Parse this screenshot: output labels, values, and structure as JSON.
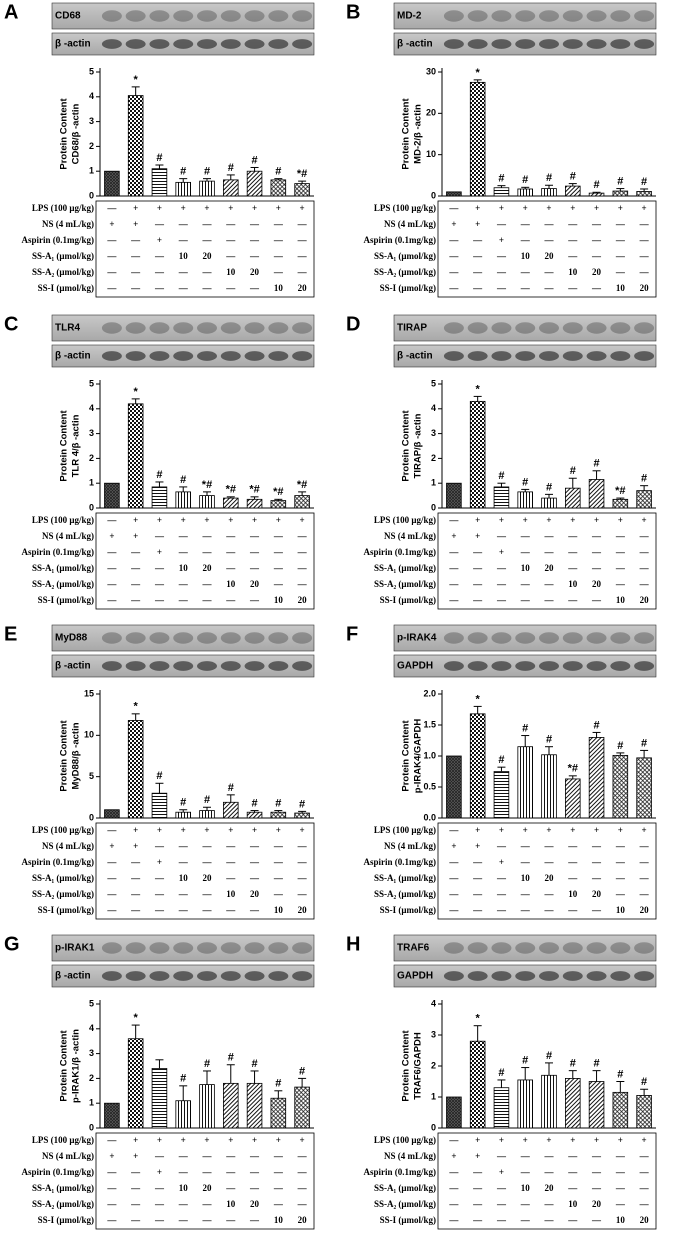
{
  "chart_data": [
    {
      "type": "bar",
      "panel": "A",
      "blots": [
        "CD68",
        "β -actin"
      ],
      "ylabel": [
        "Protein Content",
        "CD68/β -actin"
      ],
      "categories": [
        null,
        null,
        null,
        null,
        null,
        null,
        null,
        null,
        null
      ],
      "values": [
        1,
        4.05,
        1.1,
        0.55,
        0.6,
        0.65,
        1.0,
        0.65,
        0.5
      ],
      "errors": [
        0,
        0.35,
        0.15,
        0.15,
        0.1,
        0.2,
        0.15,
        0.05,
        0.1
      ],
      "annotations": [
        null,
        "*",
        "#",
        "#",
        "#",
        "#",
        "#",
        "#",
        "*#"
      ],
      "ylim": [
        0,
        5
      ],
      "yticks": [
        0,
        1,
        2,
        3,
        4,
        5
      ]
    },
    {
      "type": "bar",
      "panel": "B",
      "blots": [
        "MD-2",
        "β -actin"
      ],
      "ylabel": [
        "Protein Content",
        "MD-2/β -actin"
      ],
      "categories": [
        null,
        null,
        null,
        null,
        null,
        null,
        null,
        null,
        null
      ],
      "values": [
        1,
        27.5,
        2,
        1.7,
        1.8,
        2.4,
        0.7,
        1.2,
        1.1
      ],
      "errors": [
        0,
        0.6,
        0.5,
        0.4,
        0.8,
        0.6,
        0.2,
        0.6,
        0.6
      ],
      "annotations": [
        null,
        "*",
        "#",
        "#",
        "#",
        "#",
        "#",
        "#",
        "#"
      ],
      "ylim": [
        0,
        30
      ],
      "yticks": [
        0,
        10,
        20,
        30
      ]
    },
    {
      "type": "bar",
      "panel": "C",
      "blots": [
        "TLR4",
        "β -actin"
      ],
      "ylabel": [
        "Protein Content",
        "TLR 4/β -actin"
      ],
      "categories": [
        null,
        null,
        null,
        null,
        null,
        null,
        null,
        null,
        null
      ],
      "values": [
        1,
        4.2,
        0.85,
        0.65,
        0.5,
        0.4,
        0.35,
        0.3,
        0.5
      ],
      "errors": [
        0,
        0.2,
        0.2,
        0.2,
        0.15,
        0.05,
        0.1,
        0.05,
        0.15
      ],
      "annotations": [
        null,
        "*",
        "#",
        "#",
        "*#",
        "*#",
        "*#",
        "*#",
        "*#"
      ],
      "ylim": [
        0,
        5
      ],
      "yticks": [
        0,
        1,
        2,
        3,
        4,
        5
      ]
    },
    {
      "type": "bar",
      "panel": "D",
      "blots": [
        "TIRAP",
        "β -actin"
      ],
      "ylabel": [
        "Protein Content",
        "TIRAP/β -actin"
      ],
      "categories": [
        null,
        null,
        null,
        null,
        null,
        null,
        null,
        null,
        null
      ],
      "values": [
        1,
        4.3,
        0.85,
        0.65,
        0.4,
        0.8,
        1.15,
        0.35,
        0.7
      ],
      "errors": [
        0,
        0.2,
        0.15,
        0.1,
        0.15,
        0.4,
        0.35,
        0.05,
        0.2
      ],
      "annotations": [
        null,
        "*",
        "#",
        "#",
        "#",
        "#",
        "#",
        "*#",
        "#"
      ],
      "ylim": [
        0,
        5
      ],
      "yticks": [
        0,
        1,
        2,
        3,
        4,
        5
      ]
    },
    {
      "type": "bar",
      "panel": "E",
      "blots": [
        "MyD88",
        "β -actin"
      ],
      "ylabel": [
        "Protein Content",
        "MyD88/β -actin"
      ],
      "categories": [
        null,
        null,
        null,
        null,
        null,
        null,
        null,
        null,
        null
      ],
      "values": [
        1,
        11.8,
        3,
        0.7,
        0.9,
        1.9,
        0.7,
        0.7,
        0.6
      ],
      "errors": [
        0,
        0.8,
        1.2,
        0.3,
        0.4,
        0.9,
        0.2,
        0.2,
        0.2
      ],
      "annotations": [
        null,
        "*",
        "#",
        "#",
        "#",
        "#",
        "#",
        "#",
        "#"
      ],
      "ylim": [
        0,
        15
      ],
      "yticks": [
        0,
        5,
        10,
        15
      ]
    },
    {
      "type": "bar",
      "panel": "F",
      "blots": [
        "p-IRAK4",
        "GAPDH"
      ],
      "ylabel": [
        "Protein Content",
        "p-IRAK4/GAPDH"
      ],
      "categories": [
        null,
        null,
        null,
        null,
        null,
        null,
        null,
        null,
        null
      ],
      "values": [
        1,
        1.68,
        0.75,
        1.15,
        1.02,
        0.63,
        1.3,
        1.01,
        0.97
      ],
      "errors": [
        0,
        0.12,
        0.07,
        0.18,
        0.13,
        0.05,
        0.08,
        0.04,
        0.12
      ],
      "annotations": [
        null,
        "*",
        "#",
        "#",
        "#",
        "*#",
        "#",
        "#",
        "#"
      ],
      "ylim": [
        0,
        2
      ],
      "yticks": [
        {
          "value": 0,
          "label": "0.0"
        },
        {
          "value": 0.5,
          "label": "0.5"
        },
        {
          "value": 1,
          "label": "1.0"
        },
        {
          "value": 1.5,
          "label": "1.5"
        },
        {
          "value": 2,
          "label": "2.0"
        }
      ]
    },
    {
      "type": "bar",
      "panel": "G",
      "blots": [
        "p-IRAK1",
        "β -actin"
      ],
      "ylabel": [
        "Protein Content",
        "p-IRAK1/β -actin"
      ],
      "categories": [
        null,
        null,
        null,
        null,
        null,
        null,
        null,
        null,
        null
      ],
      "values": [
        1,
        3.6,
        2.4,
        1.1,
        1.75,
        1.8,
        1.8,
        1.2,
        1.65
      ],
      "errors": [
        0,
        0.55,
        0.35,
        0.6,
        0.55,
        0.75,
        0.5,
        0.3,
        0.35
      ],
      "annotations": [
        null,
        "*",
        null,
        "#",
        "#",
        "#",
        "#",
        "#",
        "#"
      ],
      "ylim": [
        0,
        5
      ],
      "yticks": [
        0,
        1,
        2,
        3,
        4,
        5
      ]
    },
    {
      "type": "bar",
      "panel": "H",
      "blots": [
        "TRAF6",
        "GAPDH"
      ],
      "ylabel": [
        "Protein Content",
        "TRAF6/GAPDH"
      ],
      "categories": [
        null,
        null,
        null,
        null,
        null,
        null,
        null,
        null,
        null
      ],
      "values": [
        1,
        2.8,
        1.3,
        1.55,
        1.7,
        1.6,
        1.5,
        1.15,
        1.05
      ],
      "errors": [
        0,
        0.5,
        0.25,
        0.4,
        0.4,
        0.25,
        0.35,
        0.35,
        0.2
      ],
      "annotations": [
        null,
        "*",
        "#",
        "#",
        "#",
        "#",
        "#",
        "#",
        "#"
      ],
      "ylim": [
        0,
        4
      ],
      "yticks": [
        0,
        1,
        2,
        3,
        4
      ]
    }
  ],
  "treatment_table": {
    "rows": [
      {
        "label": "LPS (100 μg/kg)",
        "cells": [
          "—",
          "+",
          "+",
          "+",
          "+",
          "+",
          "+",
          "+",
          "+"
        ]
      },
      {
        "label": "NS (4 mL/kg)",
        "cells": [
          "+",
          "+",
          "—",
          "—",
          "—",
          "—",
          "—",
          "—",
          "—"
        ]
      },
      {
        "label": "Aspirin (0.1mg/kg)",
        "cells": [
          "—",
          "—",
          "+",
          "—",
          "—",
          "—",
          "—",
          "—",
          "—"
        ]
      },
      {
        "label": "SS-A₁ (μmol/kg)",
        "cells": [
          "—",
          "—",
          "—",
          "10",
          "20",
          "—",
          "—",
          "—",
          "—"
        ]
      },
      {
        "label": "SS-A₂ (μmol/kg)",
        "cells": [
          "—",
          "—",
          "—",
          "—",
          "—",
          "10",
          "20",
          "—",
          "—"
        ]
      },
      {
        "label": "SS-I (μmol/kg)",
        "cells": [
          "—",
          "—",
          "—",
          "—",
          "—",
          "—",
          "—",
          "10",
          "20"
        ]
      }
    ]
  }
}
